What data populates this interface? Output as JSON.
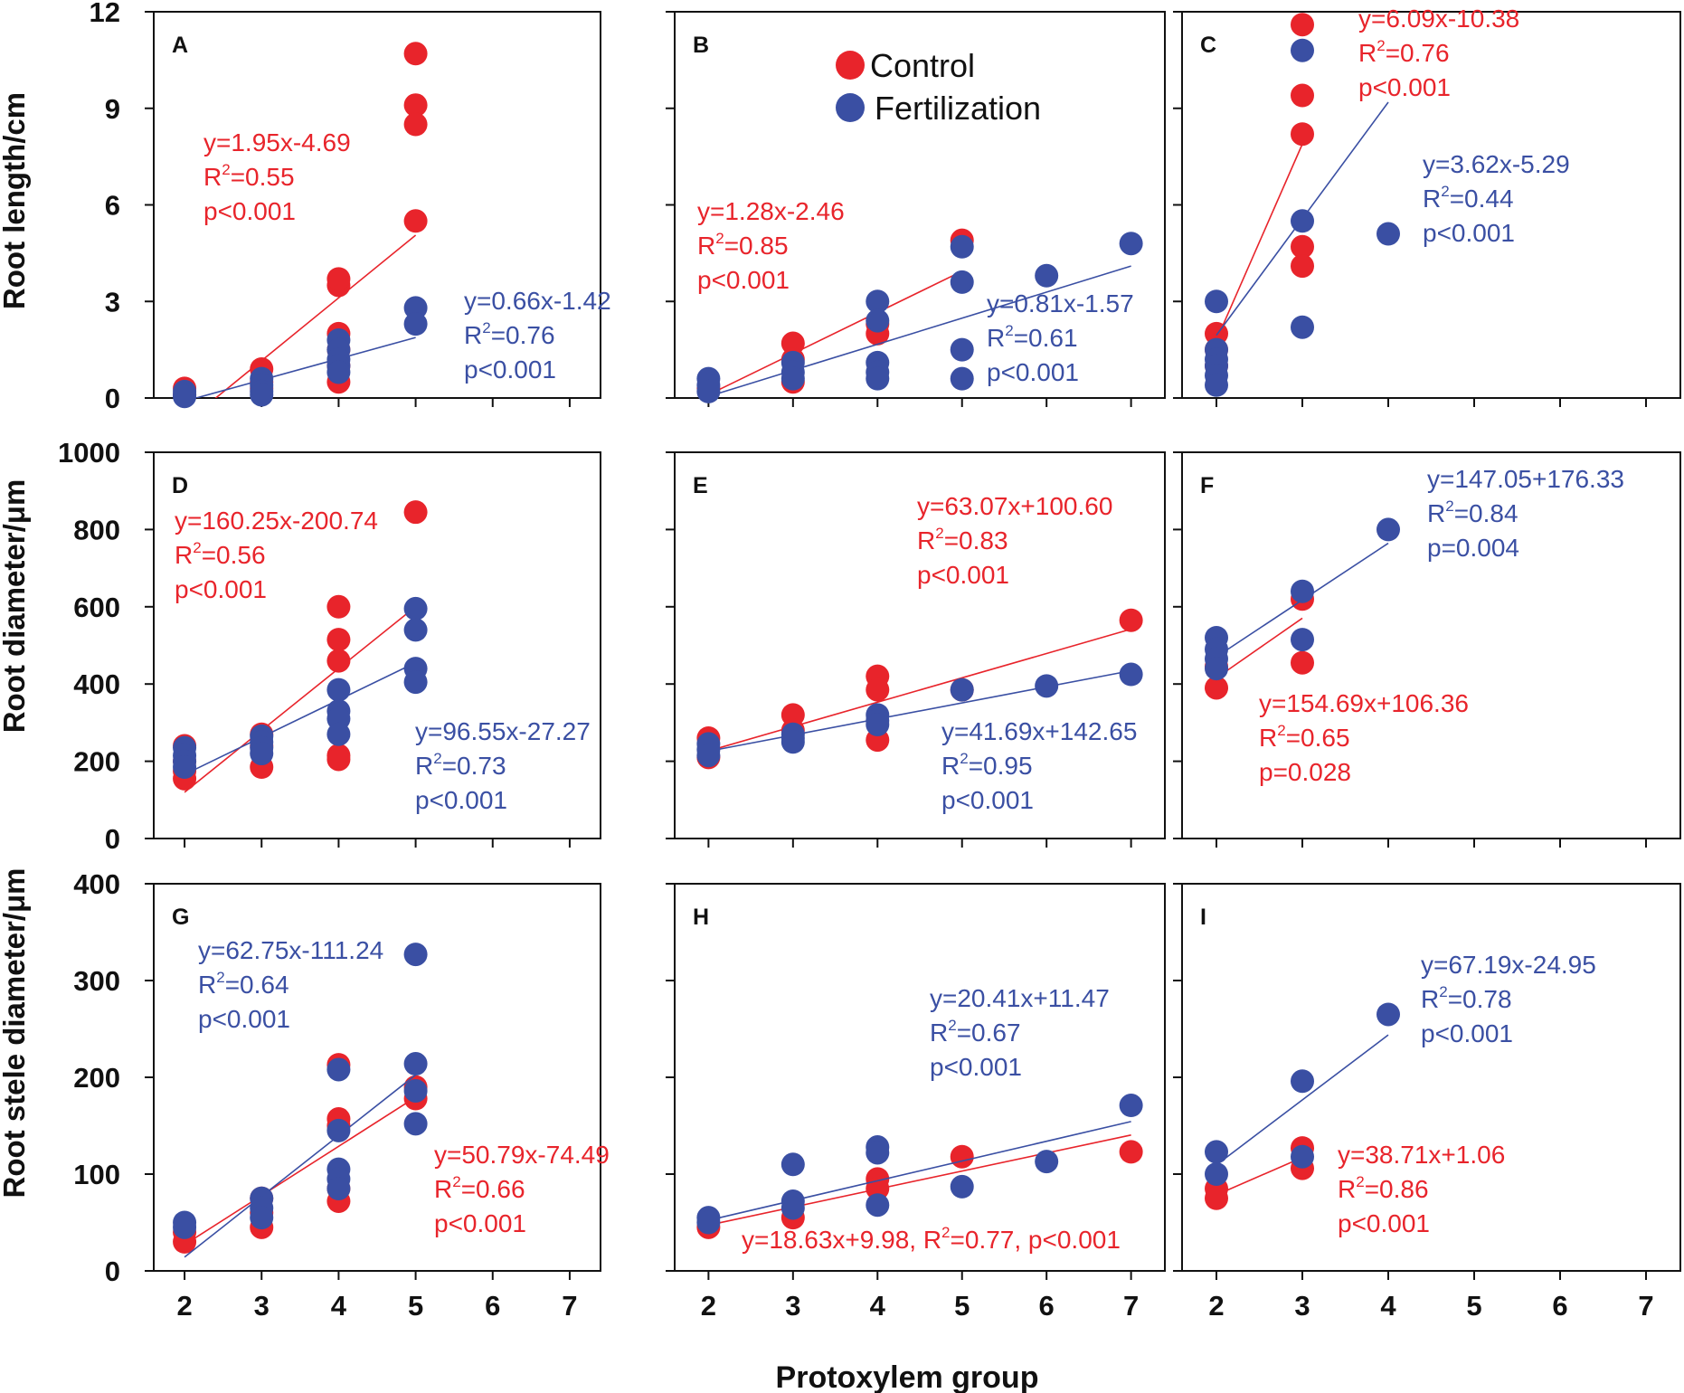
{
  "colors": {
    "control": "#e8242b",
    "fertilization": "#3a4fa3",
    "axis": "#111111"
  },
  "legend": {
    "control": "Control",
    "fertilization": "Fertilization"
  },
  "x_axis_title": "Protoxylem group",
  "x_ticks": [
    "2",
    "3",
    "4",
    "5",
    "6",
    "7"
  ],
  "rows": [
    {
      "ylabel": "Root length/cm",
      "yticks": [
        "0",
        "3",
        "6",
        "9",
        "12"
      ]
    },
    {
      "ylabel": "Root diameter/μm",
      "yticks": [
        "0",
        "200",
        "400",
        "600",
        "800",
        "1000"
      ]
    },
    {
      "ylabel": "Root stele diameter/μm",
      "yticks": [
        "0",
        "100",
        "200",
        "300",
        "400"
      ]
    }
  ],
  "chart_data": [
    {
      "panel": "A",
      "type": "scatter",
      "ylabel": "Root length/cm",
      "xlim": [
        1.6,
        7.4
      ],
      "ylim": [
        0,
        12
      ],
      "series": [
        {
          "name": "Control",
          "points": [
            [
              2,
              0.3
            ],
            [
              2,
              0.1
            ],
            [
              3,
              0.9
            ],
            [
              3,
              0.5
            ],
            [
              3,
              0.3
            ],
            [
              4,
              3.5
            ],
            [
              4,
              3.7
            ],
            [
              4,
              2.0
            ],
            [
              4,
              1.5
            ],
            [
              4,
              1.0
            ],
            [
              4,
              0.5
            ],
            [
              5,
              10.7
            ],
            [
              5,
              9.1
            ],
            [
              5,
              8.5
            ],
            [
              5,
              5.5
            ]
          ],
          "fit": {
            "x1": 2,
            "x2": 5,
            "equation": "y=1.95x-4.69",
            "r2": "=0.55",
            "p": "p<0.001"
          }
        },
        {
          "name": "Fertilization",
          "points": [
            [
              2,
              0.2
            ],
            [
              2,
              0.1
            ],
            [
              2,
              0.05
            ],
            [
              3,
              0.6
            ],
            [
              3,
              0.4
            ],
            [
              3,
              0.2
            ],
            [
              3,
              0.1
            ],
            [
              4,
              1.8
            ],
            [
              4,
              1.5
            ],
            [
              4,
              1.2
            ],
            [
              4,
              1.0
            ],
            [
              4,
              0.8
            ],
            [
              5,
              2.8
            ],
            [
              5,
              2.3
            ]
          ],
          "fit": {
            "x1": 2,
            "x2": 5,
            "equation": "y=0.66x-1.42",
            "r2": "=0.76",
            "p": "p<0.001"
          }
        }
      ]
    },
    {
      "panel": "B",
      "type": "scatter",
      "ylabel": "Root length/cm",
      "xlim": [
        1.6,
        7.4
      ],
      "ylim": [
        0,
        12
      ],
      "series": [
        {
          "name": "Control",
          "points": [
            [
              2,
              0.3
            ],
            [
              3,
              1.7
            ],
            [
              3,
              1.2
            ],
            [
              3,
              0.5
            ],
            [
              4,
              2.3
            ],
            [
              4,
              2.0
            ],
            [
              5,
              4.9
            ]
          ],
          "fit": {
            "x1": 2,
            "x2": 5,
            "equation": "y=1.28x-2.46",
            "r2": "=0.85",
            "p": "p<0.001"
          }
        },
        {
          "name": "Fertilization",
          "points": [
            [
              2,
              0.6
            ],
            [
              2,
              0.4
            ],
            [
              2,
              0.2
            ],
            [
              3,
              1.1
            ],
            [
              3,
              0.8
            ],
            [
              3,
              0.6
            ],
            [
              4,
              3.0
            ],
            [
              4,
              2.4
            ],
            [
              4,
              1.1
            ],
            [
              4,
              0.8
            ],
            [
              4,
              0.6
            ],
            [
              5,
              4.7
            ],
            [
              5,
              3.6
            ],
            [
              5,
              1.5
            ],
            [
              5,
              0.6
            ],
            [
              6,
              3.8
            ],
            [
              7,
              4.8
            ]
          ],
          "fit": {
            "x1": 2,
            "x2": 7,
            "equation": "y=0.81x-1.57",
            "r2": "=0.61",
            "p": "p<0.001"
          }
        }
      ]
    },
    {
      "panel": "C",
      "type": "scatter",
      "ylabel": "Root length/cm",
      "xlim": [
        1.6,
        7.4
      ],
      "ylim": [
        0,
        12
      ],
      "series": [
        {
          "name": "Control",
          "points": [
            [
              2,
              2.0
            ],
            [
              2,
              1.5
            ],
            [
              2,
              1.0
            ],
            [
              3,
              11.6
            ],
            [
              3,
              9.4
            ],
            [
              3,
              8.2
            ],
            [
              3,
              4.7
            ],
            [
              3,
              4.1
            ]
          ],
          "fit": {
            "x1": 2,
            "x2": 3,
            "equation": "y=6.09x-10.38",
            "r2": "=0.76",
            "p": "p<0.001"
          }
        },
        {
          "name": "Fertilization",
          "points": [
            [
              2,
              3.0
            ],
            [
              2,
              1.5
            ],
            [
              2,
              1.2
            ],
            [
              2,
              1.0
            ],
            [
              2,
              0.7
            ],
            [
              2,
              0.4
            ],
            [
              3,
              10.8
            ],
            [
              3,
              5.5
            ],
            [
              3,
              2.2
            ],
            [
              4,
              5.1
            ]
          ],
          "fit": {
            "x1": 2,
            "x2": 4,
            "equation": "y=3.62x-5.29",
            "r2": "=0.44",
            "p": "p<0.001"
          }
        }
      ]
    },
    {
      "panel": "D",
      "type": "scatter",
      "ylabel": "Root diameter/μm",
      "xlim": [
        1.6,
        7.4
      ],
      "ylim": [
        0,
        1000
      ],
      "series": [
        {
          "name": "Control",
          "points": [
            [
              2,
              240
            ],
            [
              2,
              200
            ],
            [
              2,
              175
            ],
            [
              2,
              155
            ],
            [
              3,
              270
            ],
            [
              3,
              240
            ],
            [
              3,
              185
            ],
            [
              4,
              600
            ],
            [
              4,
              515
            ],
            [
              4,
              460
            ],
            [
              4,
              215
            ],
            [
              4,
              205
            ],
            [
              5,
              845
            ]
          ],
          "fit": {
            "x1": 2,
            "x2": 5,
            "equation": "y=160.25x-200.74",
            "r2": "=0.56",
            "p": "p<0.001"
          }
        },
        {
          "name": "Fertilization",
          "points": [
            [
              2,
              235
            ],
            [
              2,
              215
            ],
            [
              2,
              200
            ],
            [
              2,
              185
            ],
            [
              3,
              265
            ],
            [
              3,
              250
            ],
            [
              3,
              235
            ],
            [
              3,
              220
            ],
            [
              4,
              385
            ],
            [
              4,
              330
            ],
            [
              4,
              310
            ],
            [
              4,
              270
            ],
            [
              5,
              595
            ],
            [
              5,
              540
            ],
            [
              5,
              440
            ],
            [
              5,
              405
            ]
          ],
          "fit": {
            "x1": 2,
            "x2": 5,
            "equation": "y=96.55x-27.27",
            "r2": "=0.73",
            "p": "p<0.001"
          }
        }
      ]
    },
    {
      "panel": "E",
      "type": "scatter",
      "ylabel": "Root diameter/μm",
      "xlim": [
        1.6,
        7.4
      ],
      "ylim": [
        0,
        1000
      ],
      "series": [
        {
          "name": "Control",
          "points": [
            [
              2,
              260
            ],
            [
              2,
              210
            ],
            [
              3,
              320
            ],
            [
              3,
              280
            ],
            [
              4,
              420
            ],
            [
              4,
              385
            ],
            [
              4,
              255
            ],
            [
              5,
              385
            ],
            [
              7,
              565
            ]
          ],
          "fit": {
            "x1": 2,
            "x2": 7,
            "equation": "y=63.07x+100.60",
            "r2": "=0.83",
            "p": "p<0.001"
          }
        },
        {
          "name": "Fertilization",
          "points": [
            [
              2,
              245
            ],
            [
              2,
              230
            ],
            [
              2,
              215
            ],
            [
              3,
              270
            ],
            [
              3,
              260
            ],
            [
              3,
              250
            ],
            [
              4,
              320
            ],
            [
              4,
              305
            ],
            [
              4,
              295
            ],
            [
              5,
              385
            ],
            [
              6,
              395
            ],
            [
              7,
              425
            ]
          ],
          "fit": {
            "x1": 2,
            "x2": 7,
            "equation": "y=41.69x+142.65",
            "r2": "=0.95",
            "p": "p<0.001"
          }
        }
      ]
    },
    {
      "panel": "F",
      "type": "scatter",
      "ylabel": "Root diameter/μm",
      "xlim": [
        1.6,
        7.4
      ],
      "ylim": [
        0,
        1000
      ],
      "series": [
        {
          "name": "Control",
          "points": [
            [
              2,
              445
            ],
            [
              2,
              390
            ],
            [
              3,
              620
            ],
            [
              3,
              455
            ]
          ],
          "fit": {
            "x1": 2,
            "x2": 3,
            "equation": "y=154.69x+106.36",
            "r2": "=0.65",
            "p": "p=0.028"
          }
        },
        {
          "name": "Fertilization",
          "points": [
            [
              2,
              520
            ],
            [
              2,
              490
            ],
            [
              2,
              465
            ],
            [
              2,
              440
            ],
            [
              3,
              640
            ],
            [
              3,
              515
            ],
            [
              4,
              800
            ]
          ],
          "fit": {
            "x1": 2,
            "x2": 4,
            "equation": "y=147.05+176.33",
            "r2": "=0.84",
            "p": "p=0.004"
          }
        }
      ]
    },
    {
      "panel": "G",
      "type": "scatter",
      "ylabel": "Root stele diameter/μm",
      "xlim": [
        1.6,
        7.4
      ],
      "ylim": [
        0,
        400
      ],
      "series": [
        {
          "name": "Control",
          "points": [
            [
              2,
              40
            ],
            [
              2,
              30
            ],
            [
              3,
              75
            ],
            [
              3,
              60
            ],
            [
              3,
              45
            ],
            [
              4,
              213
            ],
            [
              4,
              157
            ],
            [
              4,
              150
            ],
            [
              4,
              85
            ],
            [
              4,
              72
            ],
            [
              5,
              190
            ],
            [
              5,
              178
            ]
          ],
          "fit": {
            "x1": 2,
            "x2": 5,
            "equation": "y=50.79x-74.49",
            "r2": "=0.66",
            "p": "p<0.001"
          }
        },
        {
          "name": "Fertilization",
          "points": [
            [
              2,
              50
            ],
            [
              2,
              45
            ],
            [
              3,
              75
            ],
            [
              3,
              65
            ],
            [
              3,
              55
            ],
            [
              4,
              208
            ],
            [
              4,
              145
            ],
            [
              4,
              105
            ],
            [
              4,
              95
            ],
            [
              4,
              85
            ],
            [
              5,
              327
            ],
            [
              5,
              214
            ],
            [
              5,
              186
            ],
            [
              5,
              152
            ]
          ],
          "fit": {
            "x1": 2,
            "x2": 5,
            "equation": "y=62.75x-111.24",
            "r2": "=0.64",
            "p": "p<0.001"
          }
        }
      ]
    },
    {
      "panel": "H",
      "type": "scatter",
      "ylabel": "Root stele diameter/μm",
      "xlim": [
        1.6,
        7.4
      ],
      "ylim": [
        0,
        400
      ],
      "series": [
        {
          "name": "Control",
          "points": [
            [
              2,
              45
            ],
            [
              3,
              55
            ],
            [
              4,
              95
            ],
            [
              4,
              85
            ],
            [
              5,
              118
            ],
            [
              7,
              123
            ]
          ],
          "fit": {
            "x1": 2,
            "x2": 7,
            "equation": "y=18.63x+9.98, R",
            "r2": "=0.77, p<0.001",
            "p": ""
          }
        },
        {
          "name": "Fertilization",
          "points": [
            [
              2,
              55
            ],
            [
              2,
              50
            ],
            [
              3,
              110
            ],
            [
              3,
              72
            ],
            [
              3,
              65
            ],
            [
              4,
              128
            ],
            [
              4,
              122
            ],
            [
              4,
              68
            ],
            [
              5,
              87
            ],
            [
              6,
              113
            ],
            [
              7,
              171
            ]
          ],
          "fit": {
            "x1": 2,
            "x2": 7,
            "equation": "y=20.41x+11.47",
            "r2": "=0.67",
            "p": "p<0.001"
          }
        }
      ]
    },
    {
      "panel": "I",
      "type": "scatter",
      "ylabel": "Root stele diameter/μm",
      "xlim": [
        1.6,
        7.4
      ],
      "ylim": [
        0,
        400
      ],
      "series": [
        {
          "name": "Control",
          "points": [
            [
              2,
              85
            ],
            [
              2,
              75
            ],
            [
              3,
              127
            ],
            [
              3,
              106
            ]
          ],
          "fit": {
            "x1": 2,
            "x2": 3,
            "equation": "y=38.71x+1.06",
            "r2": "=0.86",
            "p": "p<0.001"
          }
        },
        {
          "name": "Fertilization",
          "points": [
            [
              2,
              123
            ],
            [
              2,
              100
            ],
            [
              3,
              196
            ],
            [
              3,
              118
            ],
            [
              4,
              265
            ]
          ],
          "fit": {
            "x1": 2,
            "x2": 4,
            "equation": "y=67.19x-24.95",
            "r2": "=0.78",
            "p": "p<0.001"
          }
        }
      ]
    }
  ]
}
